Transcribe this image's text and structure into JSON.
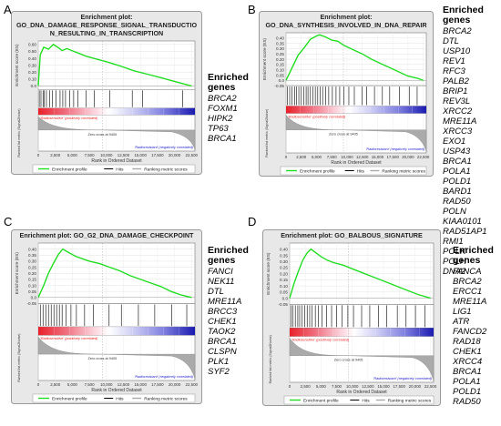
{
  "common": {
    "enriched_title_line1": "Enriched",
    "enriched_title_line2": "genes",
    "ylabel_es": "Enrichment score (ES)",
    "ylabel_metric": "Ranked list metric (Signal2Noise)",
    "xlabel": "Rank in Ordered Dataset",
    "pos_label": "'Radiosensitive' (positively correlated)",
    "neg_label": "'Radioresistant' (negatively correlated)",
    "legend": [
      "Enrichment profile",
      "Hits",
      "Ranking metric scores"
    ],
    "xticks": [
      "0",
      "2,500",
      "5,000",
      "7,500",
      "10,000",
      "12,500",
      "15,000",
      "17,500",
      "20,000",
      "22,500"
    ],
    "colors": {
      "profile": "#22dd22",
      "hits": "#000000",
      "metric": "#aaaaaa",
      "pos": "#ee2222",
      "neg": "#2222cc",
      "frame_bg": "#e8e8e8"
    }
  },
  "panels": [
    {
      "letter": "A",
      "title": [
        "Enrichment plot:",
        "GO_DNA_DAMAGE_RESPONSE_SIGNAL_TRANSDUCTIO",
        "N_RESULTING_IN_TRANSCRIPTION"
      ],
      "zero_cross": "Zero cross at 9405",
      "genes": [
        "BRCA2",
        "FOXM1",
        "HIPK2",
        "TP63",
        "BRCA1"
      ]
    },
    {
      "letter": "B",
      "title": [
        "Enrichment plot:",
        "GO_DNA_SYNTHESIS_INVOLVED_IN_DNA_REPAIR"
      ],
      "zero_cross": "Zero cross at 9405",
      "genes": [
        "BRCA2",
        "DTL",
        "USP10",
        "REV1",
        "RFC3",
        "PALB2",
        "BRIP1",
        "REV3L",
        "XRCC2",
        "MRE11A",
        "XRCC3",
        "EXO1",
        "USP43",
        "BRCA1",
        "POLA1",
        "POLD1",
        "BARD1",
        "RAD50",
        "POLN",
        "KIAA0101",
        "RAD51AP1",
        "RMI1",
        "POLK",
        "POLH",
        "DNA2"
      ]
    },
    {
      "letter": "C",
      "title": [
        "Enrichment plot: GO_G2_DNA_DAMAGE_CHECKPOINT"
      ],
      "zero_cross": "Zero cross at 9405",
      "genes": [
        "FANCI",
        "NEK11",
        "DTL",
        "MRE11A",
        "BRCC3",
        "CHEK1",
        "TAOK2",
        "BRCA1",
        "CLSPN",
        "PLK1",
        "SYF2"
      ]
    },
    {
      "letter": "D",
      "title": [
        "Enrichment plot: GO_BALBOUS_SIGNATURE"
      ],
      "zero_cross": "Zero cross at 9405",
      "genes": [
        "FANCA",
        "BRCA2",
        "ERCC1",
        "MRE11A",
        "LIG1",
        "ATR",
        "FANCD2",
        "RAD18",
        "CHEK1",
        "XRCC4",
        "BRCA1",
        "POLA1",
        "POLD1",
        "RAD50"
      ]
    }
  ],
  "chart_data": [
    {
      "type": "line",
      "title": "Enrichment plot: GO_DNA_DAMAGE_RESPONSE_SIGNAL_TRANSDUCTION_RESULTING_IN_TRANSCRIPTION",
      "xlabel": "Rank in Ordered Dataset",
      "ylabel": "Enrichment score (ES)",
      "xlim": [
        0,
        23000
      ],
      "ylim": [
        -0.05,
        0.65
      ],
      "yticks": [
        0.6,
        0.5,
        0.4,
        0.3,
        0.2,
        0.1,
        0.0
      ],
      "series": [
        {
          "name": "Enrichment profile",
          "x": [
            0,
            300,
            800,
            1500,
            2200,
            3000,
            3500,
            4200,
            5200,
            6000,
            7000,
            8500,
            10000,
            12000,
            14000,
            16000,
            18000,
            19500,
            21000,
            22500
          ],
          "y": [
            0.0,
            0.45,
            0.56,
            0.53,
            0.6,
            0.55,
            0.51,
            0.54,
            0.5,
            0.47,
            0.43,
            0.39,
            0.35,
            0.29,
            0.22,
            0.17,
            0.12,
            0.08,
            0.04,
            0.0
          ]
        }
      ],
      "hits": [
        150,
        400,
        700,
        900,
        1200,
        1700,
        2100,
        2600,
        3200,
        3600,
        4000,
        4600,
        5200,
        5800,
        7000,
        8200,
        10500,
        13800,
        15300,
        21200
      ]
    },
    {
      "type": "line",
      "title": "Enrichment plot: GO_DNA_SYNTHESIS_INVOLVED_IN_DNA_REPAIR",
      "xlabel": "Rank in Ordered Dataset",
      "ylabel": "Enrichment score (ES)",
      "xlim": [
        0,
        23000
      ],
      "ylim": [
        -0.05,
        0.45
      ],
      "yticks": [
        0.4,
        0.35,
        0.3,
        0.25,
        0.2,
        0.15,
        0.1,
        0.05,
        0.0,
        -0.05
      ],
      "series": [
        {
          "name": "Enrichment profile",
          "x": [
            0,
            1000,
            2000,
            3000,
            4000,
            5000,
            5500,
            6500,
            7500,
            8500,
            9500,
            11000,
            12500,
            14000,
            15500,
            17000,
            18500,
            20000,
            21500,
            22500
          ],
          "y": [
            0.0,
            0.12,
            0.24,
            0.31,
            0.39,
            0.42,
            0.43,
            0.41,
            0.38,
            0.37,
            0.33,
            0.29,
            0.25,
            0.2,
            0.16,
            0.12,
            0.08,
            0.04,
            0.02,
            0.0
          ]
        }
      ],
      "hits": [
        200,
        600,
        1000,
        1400,
        1700,
        2100,
        2500,
        2900,
        3300,
        3600,
        4000,
        4400,
        4800,
        5200,
        5600,
        6000,
        6500,
        7000,
        7600,
        8200,
        8800,
        9500,
        10300,
        11200,
        12500,
        13200,
        14500,
        15800,
        17000,
        18600,
        20200,
        21500
      ]
    },
    {
      "type": "line",
      "title": "Enrichment plot: GO_G2_DNA_DAMAGE_CHECKPOINT",
      "xlabel": "Rank in Ordered Dataset",
      "ylabel": "Enrichment score (ES)",
      "xlim": [
        0,
        23000
      ],
      "ylim": [
        -0.05,
        0.45
      ],
      "yticks": [
        0.4,
        0.35,
        0.3,
        0.25,
        0.2,
        0.15,
        0.1,
        0.05,
        0.0,
        -0.05
      ],
      "series": [
        {
          "name": "Enrichment profile",
          "x": [
            0,
            800,
            1500,
            2200,
            3000,
            3600,
            4500,
            5500,
            6500,
            7500,
            9000,
            10500,
            12000,
            13500,
            15000,
            16500,
            18000,
            19500,
            21000,
            22500
          ],
          "y": [
            0.0,
            0.1,
            0.2,
            0.28,
            0.36,
            0.4,
            0.37,
            0.34,
            0.32,
            0.3,
            0.28,
            0.25,
            0.22,
            0.18,
            0.15,
            0.12,
            0.09,
            0.05,
            0.02,
            0.0
          ]
        }
      ],
      "hits": [
        300,
        700,
        1100,
        1500,
        1900,
        2300,
        2700,
        3100,
        3500,
        4100,
        4800,
        5600,
        6800,
        8100,
        10400,
        12200,
        14700,
        17100,
        19600,
        21800
      ]
    },
    {
      "type": "line",
      "title": "Enrichment plot: GO_BALBOUS_SIGNATURE",
      "xlabel": "Rank in Ordered Dataset",
      "ylabel": "Enrichment score (ES)",
      "xlim": [
        0,
        23000
      ],
      "ylim": [
        -0.05,
        0.45
      ],
      "yticks": [
        0.4,
        0.35,
        0.3,
        0.25,
        0.2,
        0.15,
        0.1,
        0.05,
        0.0,
        -0.05
      ],
      "series": [
        {
          "name": "Enrichment profile",
          "x": [
            0,
            700,
            1400,
            2100,
            2800,
            3400,
            4200,
            5000,
            6000,
            7000,
            8500,
            10000,
            11500,
            13000,
            14500,
            16000,
            17500,
            19000,
            20500,
            22500
          ],
          "y": [
            0.0,
            0.12,
            0.22,
            0.31,
            0.37,
            0.4,
            0.37,
            0.34,
            0.31,
            0.29,
            0.27,
            0.24,
            0.21,
            0.18,
            0.15,
            0.12,
            0.09,
            0.06,
            0.03,
            0.0
          ]
        }
      ],
      "hits": [
        200,
        500,
        900,
        1300,
        1600,
        2000,
        2400,
        2800,
        3200,
        3600,
        4100,
        4600,
        5200,
        5900,
        6700,
        7500,
        8400,
        9300,
        10200,
        11500,
        12800,
        14200,
        15500,
        17200,
        18600,
        20100,
        21600
      ]
    }
  ]
}
